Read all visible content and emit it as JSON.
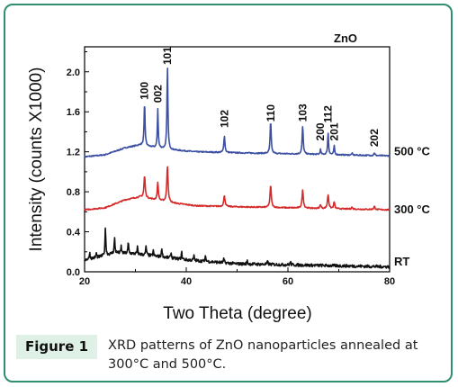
{
  "chart_data": {
    "type": "line",
    "title": "ZnO",
    "xlabel": "Two Theta (degree)",
    "ylabel": "Intensity (counts X1000)",
    "xlim": [
      20,
      80
    ],
    "ylim": [
      0.0,
      2.25
    ],
    "xticks": [
      "20",
      "40",
      "60",
      "80"
    ],
    "yticks": [
      "0.0",
      "0.4",
      "0.8",
      "1.2",
      "1.6",
      "2.0"
    ],
    "grid": false,
    "peak_labels": [
      {
        "label": "100",
        "x": 31.8,
        "y": 1.72
      },
      {
        "label": "002",
        "x": 34.4,
        "y": 1.69
      },
      {
        "label": "101",
        "x": 36.3,
        "y": 2.07
      },
      {
        "label": "102",
        "x": 47.5,
        "y": 1.44
      },
      {
        "label": "110",
        "x": 56.6,
        "y": 1.5
      },
      {
        "label": "103",
        "x": 62.9,
        "y": 1.5
      },
      {
        "label": "200",
        "x": 66.4,
        "y": 1.31
      },
      {
        "label": "112",
        "x": 67.9,
        "y": 1.49
      },
      {
        "label": "201",
        "x": 69.1,
        "y": 1.31
      },
      {
        "label": "202",
        "x": 77.0,
        "y": 1.25
      }
    ],
    "series": [
      {
        "name": "500 °C",
        "color": "#3b4fa3",
        "baseline": [
          [
            20,
            1.15
          ],
          [
            24,
            1.17
          ],
          [
            28,
            1.24
          ],
          [
            31,
            1.27
          ],
          [
            33,
            1.25
          ],
          [
            37,
            1.22
          ],
          [
            42,
            1.2
          ],
          [
            50,
            1.19
          ],
          [
            60,
            1.18
          ],
          [
            70,
            1.17
          ],
          [
            80,
            1.16
          ]
        ],
        "peaks": [
          [
            31.8,
            0.43,
            0.22
          ],
          [
            34.4,
            0.39,
            0.2
          ],
          [
            36.3,
            0.83,
            0.22
          ],
          [
            47.5,
            0.17,
            0.25
          ],
          [
            56.6,
            0.32,
            0.25
          ],
          [
            62.9,
            0.28,
            0.25
          ],
          [
            66.4,
            0.05,
            0.2
          ],
          [
            67.9,
            0.22,
            0.22
          ],
          [
            69.1,
            0.09,
            0.2
          ],
          [
            72.6,
            0.02,
            0.2
          ],
          [
            77.0,
            0.03,
            0.22
          ]
        ]
      },
      {
        "name": "300 °C",
        "color": "#d42a2a",
        "baseline": [
          [
            20,
            0.62
          ],
          [
            24,
            0.64
          ],
          [
            28,
            0.72
          ],
          [
            31,
            0.75
          ],
          [
            33,
            0.73
          ],
          [
            37,
            0.69
          ],
          [
            42,
            0.66
          ],
          [
            50,
            0.65
          ],
          [
            60,
            0.64
          ],
          [
            70,
            0.63
          ],
          [
            80,
            0.62
          ]
        ],
        "peaks": [
          [
            31.8,
            0.22,
            0.28
          ],
          [
            34.4,
            0.18,
            0.25
          ],
          [
            36.3,
            0.36,
            0.3
          ],
          [
            47.5,
            0.11,
            0.3
          ],
          [
            56.6,
            0.22,
            0.3
          ],
          [
            62.9,
            0.18,
            0.3
          ],
          [
            66.4,
            0.04,
            0.25
          ],
          [
            67.9,
            0.14,
            0.3
          ],
          [
            69.1,
            0.07,
            0.25
          ],
          [
            72.6,
            0.02,
            0.25
          ],
          [
            77.0,
            0.03,
            0.3
          ]
        ]
      },
      {
        "name": "RT",
        "color": "#111111",
        "baseline": [
          [
            20,
            0.12
          ],
          [
            23,
            0.15
          ],
          [
            26,
            0.19
          ],
          [
            30,
            0.18
          ],
          [
            35,
            0.15
          ],
          [
            40,
            0.12
          ],
          [
            50,
            0.08
          ],
          [
            60,
            0.07
          ],
          [
            70,
            0.06
          ],
          [
            80,
            0.05
          ]
        ],
        "peaks": [
          [
            21.0,
            0.07,
            0.15
          ],
          [
            22.3,
            0.05,
            0.15
          ],
          [
            24.1,
            0.29,
            0.18
          ],
          [
            25.9,
            0.15,
            0.18
          ],
          [
            27.2,
            0.07,
            0.15
          ],
          [
            28.6,
            0.11,
            0.18
          ],
          [
            30.4,
            0.07,
            0.15
          ],
          [
            32.1,
            0.09,
            0.18
          ],
          [
            33.5,
            0.06,
            0.15
          ],
          [
            35.2,
            0.09,
            0.18
          ],
          [
            37.0,
            0.06,
            0.15
          ],
          [
            39.1,
            0.07,
            0.18
          ],
          [
            41.5,
            0.05,
            0.15
          ],
          [
            43.8,
            0.05,
            0.18
          ],
          [
            47.4,
            0.04,
            0.18
          ],
          [
            52.0,
            0.03,
            0.2
          ],
          [
            56.0,
            0.03,
            0.2
          ],
          [
            60.5,
            0.03,
            0.2
          ]
        ],
        "noise": 0.015
      }
    ]
  },
  "caption": {
    "figure_label": "Figure 1",
    "text": "XRD patterns of ZnO nanoparticles annealed at 300°C and 500°C."
  },
  "colors": {
    "frame_border": "#2f8f6f",
    "badge_bg": "#dff1e6"
  }
}
